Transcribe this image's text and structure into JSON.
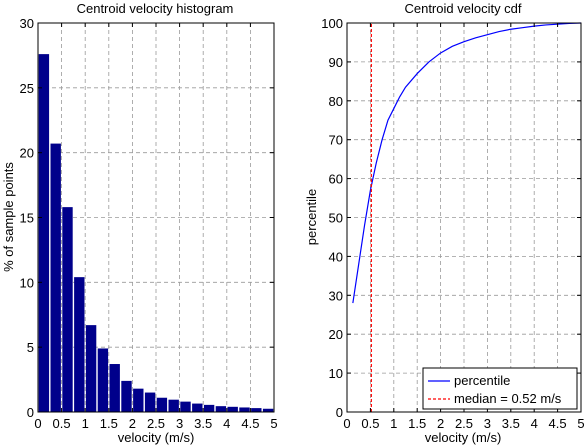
{
  "chart_data": [
    {
      "type": "bar",
      "title": "Centroid velocity histogram",
      "xlabel": "velocity (m/s)",
      "ylabel": "% of sample points",
      "xlim": [
        0,
        5
      ],
      "ylim": [
        0,
        30
      ],
      "grid": true,
      "xticks": [
        "0",
        "0.5",
        "1",
        "1.5",
        "2",
        "2.5",
        "3",
        "3.5",
        "4",
        "4.5",
        "5"
      ],
      "yticks": [
        "0",
        "5",
        "10",
        "15",
        "20",
        "25",
        "30"
      ],
      "bar_color": "#00008b",
      "x": [
        0.125,
        0.375,
        0.625,
        0.875,
        1.125,
        1.375,
        1.625,
        1.875,
        2.125,
        2.375,
        2.625,
        2.875,
        3.125,
        3.375,
        3.625,
        3.875,
        4.125,
        4.375,
        4.625,
        4.875
      ],
      "values": [
        27.6,
        20.7,
        15.8,
        10.4,
        6.7,
        4.9,
        3.7,
        2.4,
        1.8,
        1.5,
        1.1,
        0.95,
        0.8,
        0.65,
        0.55,
        0.45,
        0.4,
        0.35,
        0.3,
        0.25
      ],
      "bar_width": 0.22
    },
    {
      "type": "line",
      "title": "Centroid velocity cdf",
      "xlabel": "velocity (m/s)",
      "ylabel": "percentile",
      "xlim": [
        0,
        5
      ],
      "ylim": [
        0,
        100
      ],
      "grid": true,
      "legend_position": "bottom-right",
      "xticks": [
        "0",
        "0.5",
        "1",
        "1.5",
        "2",
        "2.5",
        "3",
        "3.5",
        "4",
        "4.5",
        "5"
      ],
      "yticks": [
        "0",
        "10",
        "20",
        "30",
        "40",
        "50",
        "60",
        "70",
        "80",
        "90",
        "100"
      ],
      "series": [
        {
          "name": "percentile",
          "color": "#0000ff",
          "x": [
            0.125,
            0.25,
            0.375,
            0.5,
            0.625,
            0.75,
            0.875,
            1.0,
            1.125,
            1.25,
            1.5,
            1.75,
            2.0,
            2.25,
            2.5,
            2.75,
            3.0,
            3.25,
            3.5,
            3.75,
            4.0,
            4.25,
            4.5,
            4.75,
            5.0
          ],
          "y": [
            28,
            38,
            48,
            57,
            64,
            70,
            75,
            78,
            81,
            83.5,
            87,
            90,
            92.3,
            94,
            95.2,
            96.2,
            97,
            97.8,
            98.4,
            98.8,
            99.2,
            99.5,
            99.7,
            99.9,
            100
          ]
        },
        {
          "name": "median = 0.52 m/s",
          "color": "#ff0000",
          "style": "dashed",
          "x": [
            0.52,
            0.52
          ],
          "y": [
            0,
            100
          ]
        }
      ]
    }
  ]
}
